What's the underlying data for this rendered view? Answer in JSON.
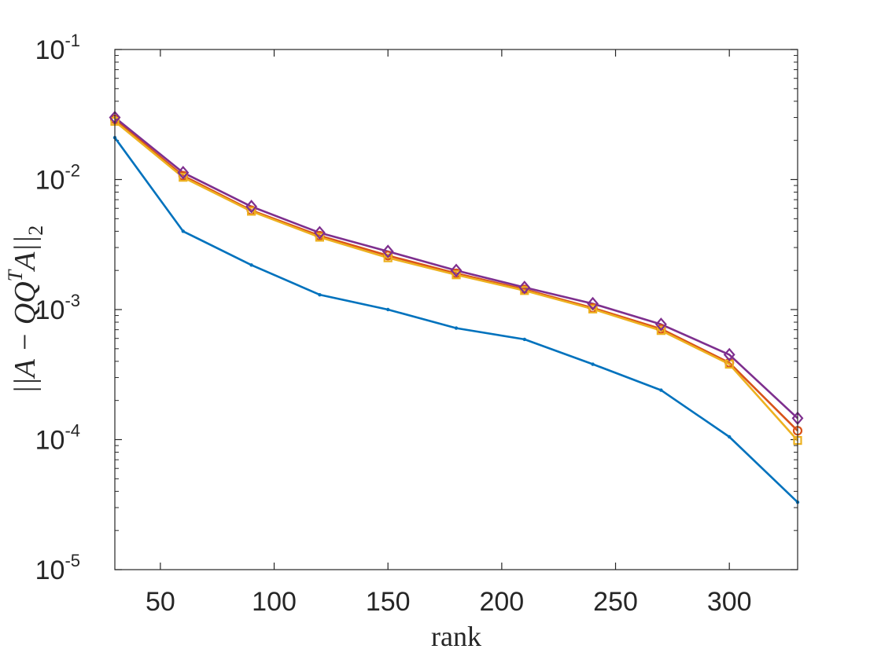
{
  "chart_data": {
    "type": "line",
    "xlabel": "rank",
    "ylabel": "||A − QQ^T A||_2",
    "ylabel_parts": {
      "pre": "||A − QQ",
      "sup": "T",
      "mid": "A||",
      "sub": "2"
    },
    "x": [
      30,
      60,
      90,
      120,
      150,
      180,
      210,
      240,
      270,
      300,
      330
    ],
    "xlim": [
      30,
      330
    ],
    "ylim": [
      1e-05,
      0.1
    ],
    "yscale": "log",
    "x_ticks": [
      {
        "value": 50,
        "label": "50"
      },
      {
        "value": 100,
        "label": "100"
      },
      {
        "value": 150,
        "label": "150"
      },
      {
        "value": 200,
        "label": "200"
      },
      {
        "value": 250,
        "label": "250"
      },
      {
        "value": 300,
        "label": "300"
      }
    ],
    "y_ticks": [
      {
        "value": 1e-05,
        "base": "10",
        "exp": "-5"
      },
      {
        "value": 0.0001,
        "base": "10",
        "exp": "-4"
      },
      {
        "value": 0.001,
        "base": "10",
        "exp": "-3"
      },
      {
        "value": 0.01,
        "base": "10",
        "exp": "-2"
      },
      {
        "value": 0.1,
        "base": "10",
        "exp": "-1"
      }
    ],
    "grid": false,
    "legend": "none",
    "series": [
      {
        "color": "#0072BD",
        "marker": "dot",
        "values": [
          0.021,
          0.004,
          0.0022,
          0.0013,
          0.001,
          0.00072,
          0.00059,
          0.00038,
          0.00024,
          0.000105,
          3.3e-05
        ]
      },
      {
        "color": "#D95319",
        "marker": "circle",
        "values": [
          0.029,
          0.0107,
          0.0058,
          0.0037,
          0.0026,
          0.0019,
          0.00143,
          0.00103,
          0.00071,
          0.00039,
          0.000117
        ]
      },
      {
        "color": "#EDB120",
        "marker": "square",
        "values": [
          0.028,
          0.0104,
          0.0057,
          0.0036,
          0.0025,
          0.00185,
          0.0014,
          0.00101,
          0.00069,
          0.00038,
          9.85e-05
        ]
      },
      {
        "color": "#7E2F8E",
        "marker": "diamond",
        "values": [
          0.03,
          0.0113,
          0.0062,
          0.0039,
          0.0028,
          0.002,
          0.00148,
          0.00111,
          0.00077,
          0.00045,
          0.000146
        ]
      }
    ]
  }
}
